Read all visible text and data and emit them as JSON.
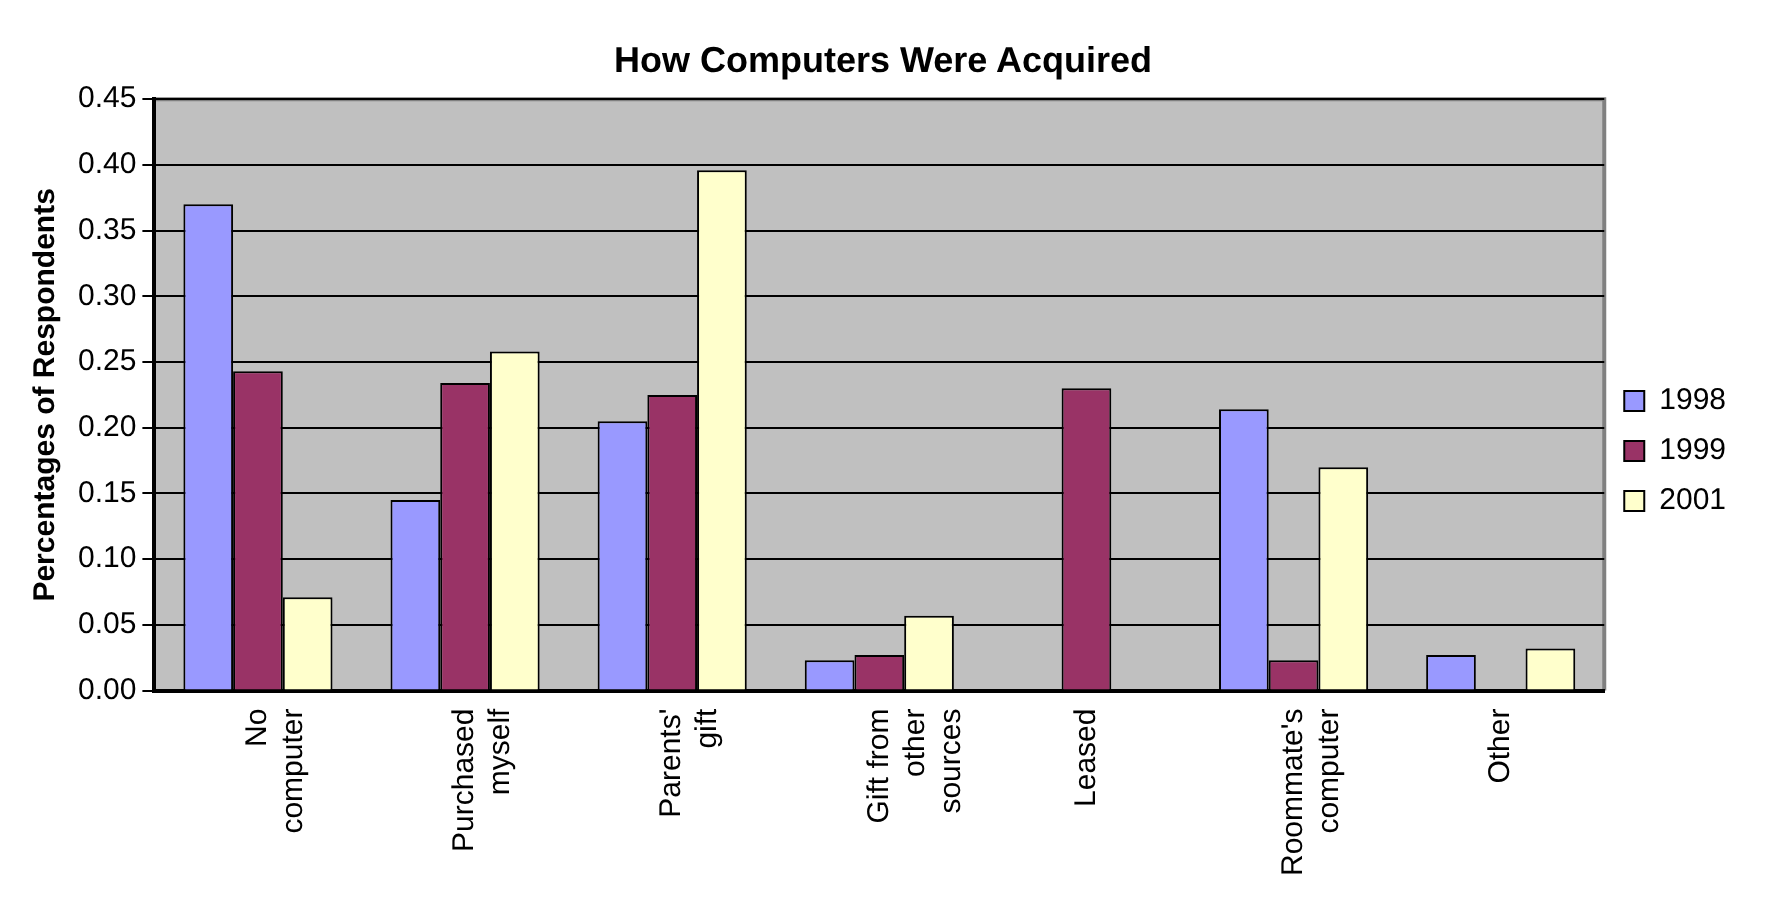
{
  "chart_data": {
    "type": "bar",
    "title": "How Computers Were Acquired",
    "ylabel": "Percentages of Respondents",
    "categories": [
      "No computer",
      "Purchased myself",
      "Parents' gift",
      "Gift from other sources",
      "Leased",
      "Roommate's computer",
      "Other"
    ],
    "series": [
      {
        "name": "1998",
        "color": "#9999ff",
        "values": [
          0.37,
          0.145,
          0.205,
          0.023,
          0,
          0.214,
          0.027
        ]
      },
      {
        "name": "1999",
        "color": "#993366",
        "values": [
          0.243,
          0.234,
          0.225,
          0.027,
          0.23,
          0.023,
          0
        ]
      },
      {
        "name": "2001",
        "color": "#ffffcc",
        "values": [
          0.071,
          0.258,
          0.396,
          0.057,
          0,
          0.17,
          0.032
        ]
      }
    ],
    "ylim": [
      0,
      0.45
    ],
    "yticks": [
      {
        "value": 0,
        "label": "0.00"
      },
      {
        "value": 0.05,
        "label": "0.05"
      },
      {
        "value": 0.1,
        "label": "0.10"
      },
      {
        "value": 0.15,
        "label": "0.15"
      },
      {
        "value": 0.2,
        "label": "0.20"
      },
      {
        "value": 0.25,
        "label": "0.25"
      },
      {
        "value": 0.3,
        "label": "0.30"
      },
      {
        "value": 0.35,
        "label": "0.35"
      },
      {
        "value": 0.4,
        "label": "0.40"
      },
      {
        "value": 0.45,
        "label": "0.45"
      }
    ],
    "grid": "y",
    "legend": "right"
  }
}
